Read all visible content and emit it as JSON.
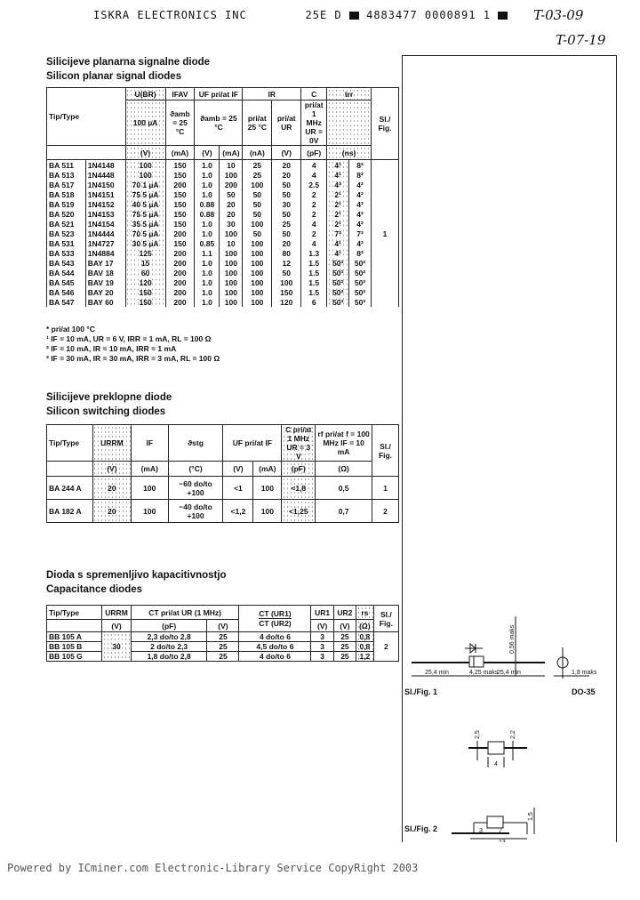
{
  "header": {
    "company": "ISKRA ELECTRONICS INC",
    "code": "25E D",
    "barcode_text": "4883477 0000891 1",
    "handwritten_1": "T-03-09",
    "handwritten_2": "T-07-19"
  },
  "signal": {
    "title_sl": "Silicijeve planarna signalne diode",
    "title_en": "Silicon planar signal diodes",
    "head": {
      "type": "Tip/Type",
      "ubr": "U(BR)",
      "ifav": "IFAV",
      "uf": "UF pri/at IF",
      "ir": "IR",
      "c": "C",
      "trr": "trr",
      "fig": "Sl./ Fig.",
      "ubr_cond": "100 µA",
      "ifav_cond": "ϑamb = 25 °C",
      "uf_cond": "ϑamb = 25 °C",
      "ir_cond1": "pri/at 25 °C",
      "ir_cond2": "pri/at UR",
      "c_cond": "pri/at 1 MHz UR = 0V",
      "units": [
        "(V)",
        "(mA)",
        "(V)",
        "(mA)",
        "(nA)",
        "(V)",
        "(pF)",
        "(ns)"
      ]
    },
    "rows": [
      [
        "BA 511",
        "1N4148",
        "100",
        "150",
        "1.0",
        "10",
        "25",
        "20",
        "4",
        "4¹",
        "8²"
      ],
      [
        "BA 513",
        "1N4448",
        "100",
        "150",
        "1.0",
        "100",
        "25",
        "20",
        "4",
        "4¹",
        "8²"
      ],
      [
        "BA 517",
        "1N4150",
        "70 1 µA",
        "200",
        "1.0",
        "200",
        "100",
        "50",
        "2.5",
        "4³",
        "4²"
      ],
      [
        "BA 518",
        "1N4151",
        "75 5 µA",
        "150",
        "1.0",
        "50",
        "50",
        "50",
        "2",
        "2¹",
        "4²"
      ],
      [
        "BA 519",
        "1N4152",
        "40 5 µA",
        "150",
        "0.88",
        "20",
        "50",
        "30",
        "2",
        "2¹",
        "4²"
      ],
      [
        "BA 520",
        "1N4153",
        "75 5 µA",
        "150",
        "0.88",
        "20",
        "50",
        "50",
        "2",
        "2¹",
        "4²"
      ],
      [
        "BA 521",
        "1N4154",
        "35 5 µA",
        "150",
        "1.0",
        "30",
        "100",
        "25",
        "4",
        "2¹",
        "4²"
      ],
      [
        "BA 523",
        "1N4444",
        "70 5 µA",
        "200",
        "1.0",
        "100",
        "50",
        "50",
        "2",
        "7³",
        "7²"
      ],
      [
        "BA 531",
        "1N4727",
        "30 5 µA",
        "150",
        "0.85",
        "10",
        "100",
        "20",
        "4",
        "4¹",
        "4²"
      ],
      [
        "BA 533",
        "1N4884",
        "125",
        "200",
        "1.1",
        "100",
        "100",
        "80",
        "1.3",
        "4¹",
        "8²"
      ],
      [
        "BA 543",
        "BAY 17",
        "15",
        "200",
        "1.0",
        "100",
        "100",
        "12",
        "1.5",
        "50³",
        "50²"
      ],
      [
        "BA 544",
        "BAV 18",
        "60",
        "200",
        "1.0",
        "100",
        "100",
        "50",
        "1.5",
        "50³",
        "50²"
      ],
      [
        "BA 545",
        "BAV 19",
        "120",
        "200",
        "1.0",
        "100",
        "100",
        "100",
        "1.5",
        "50³",
        "50²"
      ],
      [
        "BA 546",
        "BAY 20",
        "150",
        "200",
        "1.0",
        "100",
        "100",
        "150",
        "1.5",
        "50³",
        "50²"
      ],
      [
        "BA 547",
        "BAY 60",
        "150",
        "200",
        "1.0",
        "100",
        "100",
        "120",
        "6",
        "50³",
        "50²"
      ]
    ],
    "fig": "1",
    "footnotes": [
      "* pri/at 100 °C",
      "¹ IF = 10 mA, UR = 6 V, IRR = 1 mA, RL = 100 Ω",
      "² IF = 10 mA, IR = 10 mA, IRR = 1 mA",
      "³ IF = 30 mA, IR = 30 mA, IRR = 3 mA, RL = 100 Ω"
    ]
  },
  "switching": {
    "title_sl": "Silicijeve preklopne diode",
    "title_en": "Silicon switching diodes",
    "head": [
      "Tip/Type",
      "URRM",
      "IF",
      "ϑstg",
      "UF pri/at IF",
      "C pri/at 1 MHz UR = 3 V",
      "rf pri/at f = 100 MHz IF = 10 mA",
      "Sl./ Fig."
    ],
    "units": [
      "(V)",
      "(mA)",
      "(°C)",
      "(V)",
      "(mA)",
      "(pF)",
      "(Ω)"
    ],
    "rows": [
      [
        "BA 244 A",
        "20",
        "100",
        "−60 do/to +100",
        "<1",
        "100",
        "<1,8",
        "0,5",
        "1"
      ],
      [
        "BA 182 A",
        "20",
        "100",
        "−40 do/to +100",
        "<1,2",
        "100",
        "<1,25",
        "0,7",
        "2"
      ]
    ]
  },
  "capacitance": {
    "title_sl": "Dioda s spremenljivo kapacitivnostjo",
    "title_en": "Capacitance diodes",
    "head": [
      "Tip/Type",
      "URRM",
      "CT pri/at UR (1 MHz)",
      "CT (UR1)",
      "CT (UR2)",
      "UR1",
      "UR2",
      "rs",
      "Sl./ Fig."
    ],
    "units": [
      "(V)",
      "(pF)",
      "(V)",
      "(V)",
      "(V)",
      "(Ω)"
    ],
    "urrm": "30",
    "fig": "2",
    "rows": [
      [
        "BB 105 A",
        "2,3 do/to 2,8",
        "25",
        "4 do/to 6",
        "3",
        "25",
        "0,8"
      ],
      [
        "BB 105 B",
        "2 do/to 2,3",
        "25",
        "4,5 do/to 6",
        "3",
        "25",
        "0,8"
      ],
      [
        "BB 105 G",
        "1,8 do/to 2,8",
        "25",
        "4 do/to 6",
        "3",
        "25",
        "1,2"
      ]
    ]
  },
  "figures": {
    "fig1_label": "Sl./Fig. 1",
    "fig1_dims": [
      "25,4 min",
      "4,25 maks",
      "25,4 min",
      "0,56 maks",
      "1,8 maks"
    ],
    "package": "DO-35",
    "fig2_label": "Sl./Fig. 2",
    "fig2_dims": [
      "2,5",
      "2,2",
      "4",
      "3",
      "7",
      "13",
      "1,5"
    ]
  },
  "footer": "Powered by ICminer.com Electronic-Library Service CopyRight 2003"
}
